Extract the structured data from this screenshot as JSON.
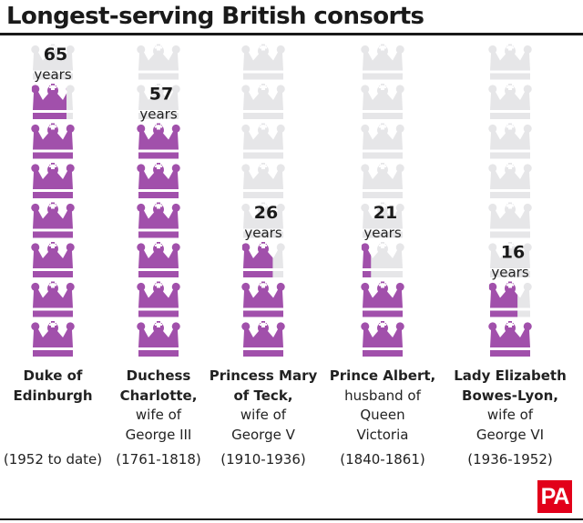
{
  "title": "Longest-serving British consorts",
  "colors": {
    "filled": "#a150ab",
    "empty": "#e6e6e8",
    "text": "#222222",
    "logo": "#e2001a"
  },
  "logo_text": "PA",
  "chart_data": {
    "type": "pictograph",
    "icon": "crown-icon",
    "title": "Longest-serving British consorts",
    "unit": "years",
    "scale": {
      "crowns_per_column": 8,
      "years_per_crown": 9.5
    },
    "items": [
      {
        "name_bold": [
          "Duke of",
          "Edinburgh"
        ],
        "name_regular": [],
        "period": "(1952 to date)",
        "value": 65
      },
      {
        "name_bold": [
          "Duchess",
          "Charlotte,"
        ],
        "name_regular": [
          "wife of",
          "George III"
        ],
        "period": "(1761-1818)",
        "value": 57
      },
      {
        "name_bold": [
          "Princess Mary",
          "of Teck,"
        ],
        "name_regular": [
          "wife of",
          "George V"
        ],
        "period": "(1910-1936)",
        "value": 26
      },
      {
        "name_bold": [
          "Prince Albert,"
        ],
        "name_regular": [
          "husband of",
          "Queen",
          "Victoria"
        ],
        "period": "(1840-1861)",
        "value": 21
      },
      {
        "name_bold": [
          "Lady Elizabeth",
          "Bowes-Lyon,"
        ],
        "name_regular": [
          "wife of",
          "George VI"
        ],
        "period": "(1936-1952)",
        "value": 16
      }
    ]
  }
}
